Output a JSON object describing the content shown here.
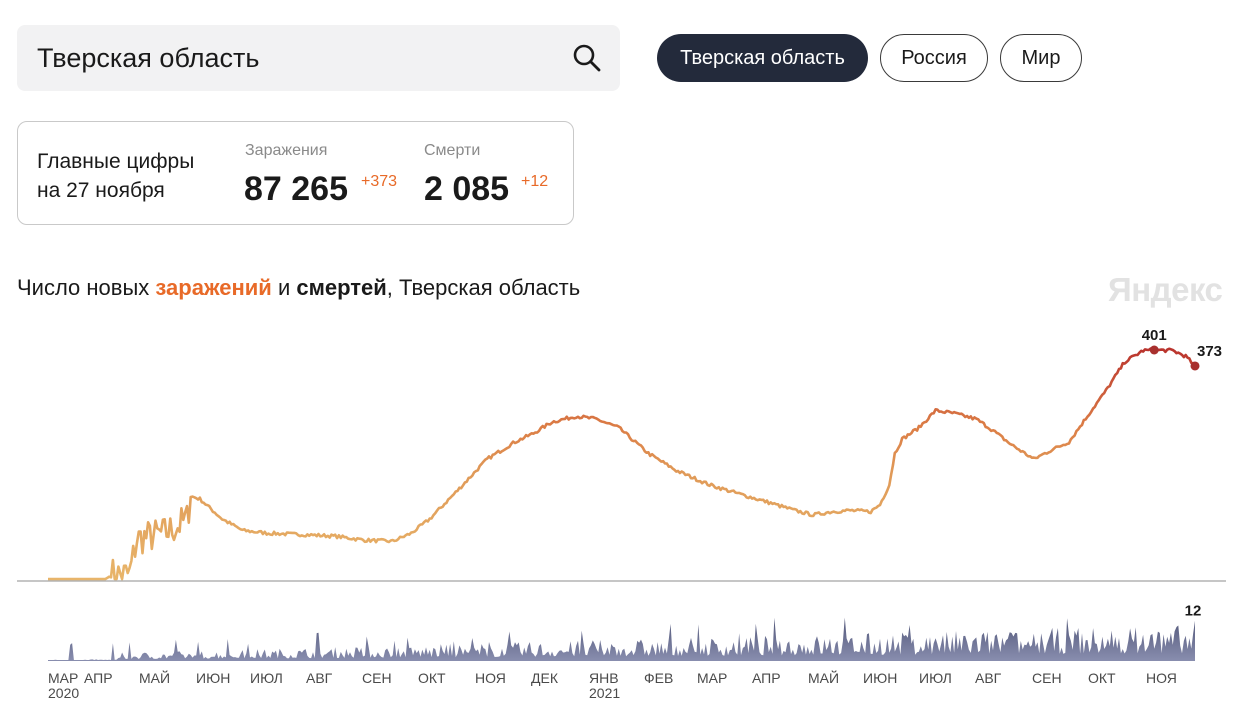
{
  "search": {
    "value": "Тверская область"
  },
  "regions": [
    "Тверская область",
    "Россия",
    "Мир"
  ],
  "summary": {
    "label_line1": "Главные цифры",
    "label_line2": "на 27 ноября",
    "infections_label": "Заражения",
    "infections_value": "87 265",
    "infections_delta": "+373",
    "deaths_label": "Смерти",
    "deaths_value": "2 085",
    "deaths_delta": "+12"
  },
  "chart_title": {
    "prefix": "Число новых ",
    "infections": "заражений",
    "middle": " и ",
    "deaths": "смертей",
    "suffix": ", Тверская область"
  },
  "logo": "Яндекс",
  "colors": {
    "accent_orange": "#e86a28",
    "line_low": "#e8b56a",
    "line_mid": "#dc7e46",
    "line_high": "#b8302c",
    "deaths_area": "#5a5f80",
    "dark_pill": "#232a3b"
  },
  "chart_data": {
    "type": "line",
    "series": [
      {
        "name": "заражений",
        "x_start": "2020-03-18",
        "x_end": "2021-11-27",
        "points": [
          [
            "2020-03-18",
            0
          ],
          [
            "2020-04-18",
            0
          ],
          [
            "2020-04-22",
            8
          ],
          [
            "2020-05-01",
            8
          ],
          [
            "2020-05-05",
            70
          ],
          [
            "2020-05-20",
            80
          ],
          [
            "2020-05-28",
            95
          ],
          [
            "2020-06-01",
            105
          ],
          [
            "2020-06-03",
            145
          ],
          [
            "2020-06-08",
            140
          ],
          [
            "2020-06-20",
            105
          ],
          [
            "2020-07-01",
            85
          ],
          [
            "2020-07-15",
            80
          ],
          [
            "2020-08-01",
            78
          ],
          [
            "2020-08-20",
            75
          ],
          [
            "2020-09-05",
            68
          ],
          [
            "2020-09-20",
            66
          ],
          [
            "2020-09-30",
            80
          ],
          [
            "2020-10-10",
            105
          ],
          [
            "2020-10-25",
            155
          ],
          [
            "2020-11-10",
            210
          ],
          [
            "2020-11-25",
            240
          ],
          [
            "2020-12-05",
            255
          ],
          [
            "2020-12-15",
            275
          ],
          [
            "2020-12-28",
            285
          ],
          [
            "2021-01-08",
            280
          ],
          [
            "2021-01-20",
            265
          ],
          [
            "2021-02-05",
            220
          ],
          [
            "2021-02-20",
            190
          ],
          [
            "2021-03-10",
            165
          ],
          [
            "2021-03-25",
            150
          ],
          [
            "2021-04-10",
            135
          ],
          [
            "2021-04-25",
            120
          ],
          [
            "2021-05-05",
            112
          ],
          [
            "2021-05-15",
            118
          ],
          [
            "2021-05-25",
            120
          ],
          [
            "2021-06-05",
            118
          ],
          [
            "2021-06-10",
            130
          ],
          [
            "2021-06-15",
            165
          ],
          [
            "2021-06-18",
            220
          ],
          [
            "2021-06-22",
            245
          ],
          [
            "2021-07-01",
            265
          ],
          [
            "2021-07-10",
            295
          ],
          [
            "2021-07-20",
            290
          ],
          [
            "2021-08-01",
            280
          ],
          [
            "2021-08-10",
            260
          ],
          [
            "2021-08-20",
            235
          ],
          [
            "2021-09-01",
            210
          ],
          [
            "2021-09-10",
            225
          ],
          [
            "2021-09-20",
            240
          ],
          [
            "2021-10-01",
            290
          ],
          [
            "2021-10-10",
            330
          ],
          [
            "2021-10-20",
            380
          ],
          [
            "2021-10-30",
            400
          ],
          [
            "2021-11-05",
            401
          ],
          [
            "2021-11-15",
            400
          ],
          [
            "2021-11-22",
            390
          ],
          [
            "2021-11-27",
            373
          ]
        ],
        "labels": [
          {
            "date": "2021-11-05",
            "value": 401,
            "text": "401"
          },
          {
            "date": "2021-11-27",
            "value": 373,
            "text": "373"
          }
        ]
      },
      {
        "name": "смертей",
        "x_start": "2020-03-18",
        "x_end": "2021-11-27",
        "last_value": 12,
        "last_label": "12",
        "ylim": [
          0,
          14
        ]
      }
    ],
    "ylim": [
      0,
      430
    ],
    "x_ticks": [
      {
        "date": "2020-03-15",
        "label": "МАР",
        "year": "2020"
      },
      {
        "date": "2020-04-15",
        "label": "АПР"
      },
      {
        "date": "2020-05-15",
        "label": "МАЙ"
      },
      {
        "date": "2020-06-15",
        "label": "ИЮН"
      },
      {
        "date": "2020-07-15",
        "label": "ИЮЛ"
      },
      {
        "date": "2020-08-15",
        "label": "АВГ"
      },
      {
        "date": "2020-09-15",
        "label": "СЕН"
      },
      {
        "date": "2020-10-15",
        "label": "ОКТ"
      },
      {
        "date": "2020-11-15",
        "label": "НОЯ"
      },
      {
        "date": "2020-12-15",
        "label": "ДЕК"
      },
      {
        "date": "2021-01-15",
        "label": "ЯНВ",
        "year": "2021"
      },
      {
        "date": "2021-02-15",
        "label": "ФЕВ"
      },
      {
        "date": "2021-03-15",
        "label": "МАР"
      },
      {
        "date": "2021-04-15",
        "label": "АПР"
      },
      {
        "date": "2021-05-15",
        "label": "МАЙ"
      },
      {
        "date": "2021-06-15",
        "label": "ИЮН"
      },
      {
        "date": "2021-07-15",
        "label": "ИЮЛ"
      },
      {
        "date": "2021-08-15",
        "label": "АВГ"
      },
      {
        "date": "2021-09-15",
        "label": "СЕН"
      },
      {
        "date": "2021-10-15",
        "label": "ОКТ"
      },
      {
        "date": "2021-11-15",
        "label": "НОЯ"
      }
    ]
  }
}
